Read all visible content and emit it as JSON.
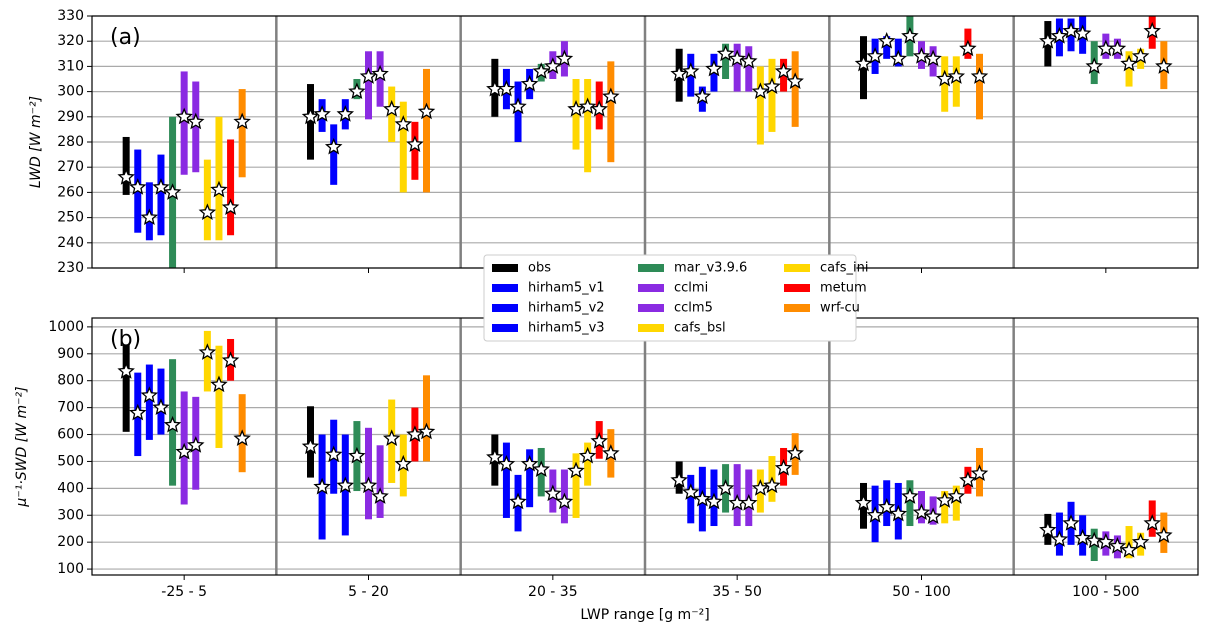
{
  "chart_data": [
    {
      "type": "range",
      "panel_label": "(a)",
      "y_label": "LWD [W m⁻²]",
      "categories": [
        "-25 - 5",
        "5 - 20",
        "20 - 35",
        "35 - 50",
        "50 - 100",
        "100 - 500"
      ],
      "ylim": [
        230,
        330
      ],
      "yticks": [
        230,
        240,
        250,
        260,
        270,
        280,
        290,
        300,
        310,
        320,
        330
      ],
      "grid": true,
      "series": [
        {
          "name": "obs",
          "color": "#000000",
          "low": [
            259,
            273,
            290,
            296,
            297,
            310
          ],
          "high": [
            282,
            303,
            313,
            317,
            322,
            328
          ],
          "values": [
            266,
            290,
            301,
            307,
            311,
            320
          ]
        },
        {
          "name": "hirham5_v1",
          "color": "#0000ff",
          "low": [
            244,
            284,
            293,
            298,
            307,
            314
          ],
          "high": [
            277,
            297,
            309,
            315,
            321,
            329
          ],
          "values": [
            262,
            291,
            301,
            308,
            314,
            322
          ]
        },
        {
          "name": "hirham5_v2",
          "color": "#0000ff",
          "low": [
            241,
            263,
            280,
            292,
            313,
            316
          ],
          "high": [
            264,
            287,
            304,
            302,
            322,
            329
          ],
          "values": [
            250,
            278,
            294,
            298,
            320,
            324
          ]
        },
        {
          "name": "hirham5_v3",
          "color": "#0000ff",
          "low": [
            243,
            285,
            297,
            300,
            310,
            315
          ],
          "high": [
            275,
            297,
            309,
            315,
            321,
            330
          ],
          "values": [
            262,
            291,
            303,
            309,
            313,
            323
          ]
        },
        {
          "name": "mar_v3.9.6",
          "color": "#2e8b57",
          "low": [
            230,
            297,
            304,
            305,
            314,
            303
          ],
          "high": [
            290,
            305,
            311,
            319,
            330,
            320
          ],
          "values": [
            260,
            300,
            308,
            315,
            322,
            310
          ]
        },
        {
          "name": "cclmi",
          "color": "#8a2be2",
          "low": [
            267,
            289,
            305,
            300,
            309,
            313
          ],
          "high": [
            308,
            316,
            316,
            319,
            320,
            323
          ],
          "values": [
            290,
            306,
            310,
            313,
            314,
            317
          ]
        },
        {
          "name": "cclm5",
          "color": "#8a2be2",
          "low": [
            268,
            294,
            306,
            300,
            306,
            313
          ],
          "high": [
            304,
            316,
            320,
            318,
            318,
            321
          ],
          "values": [
            288,
            307,
            313,
            312,
            313,
            317
          ]
        },
        {
          "name": "cafs_bsl",
          "color": "#ffd700",
          "low": [
            241,
            280,
            277,
            279,
            292,
            302
          ],
          "high": [
            273,
            302,
            305,
            310,
            314,
            316
          ],
          "values": [
            252,
            293,
            293,
            300,
            305,
            311
          ]
        },
        {
          "name": "cafs_ini",
          "color": "#ffd700",
          "low": [
            241,
            260,
            268,
            284,
            294,
            309
          ],
          "high": [
            290,
            296,
            305,
            313,
            314,
            317
          ],
          "values": [
            261,
            287,
            294,
            302,
            306,
            314
          ]
        },
        {
          "name": "metum",
          "color": "#ff0000",
          "low": [
            243,
            265,
            285,
            300,
            313,
            317
          ],
          "high": [
            281,
            288,
            304,
            313,
            325,
            330
          ],
          "values": [
            254,
            279,
            293,
            308,
            317,
            324
          ]
        },
        {
          "name": "wrf-cu",
          "color": "#ff8c00",
          "low": [
            266,
            260,
            272,
            286,
            289,
            301
          ],
          "high": [
            301,
            309,
            312,
            316,
            315,
            320
          ],
          "values": [
            288,
            292,
            298,
            304,
            306,
            310
          ]
        }
      ]
    },
    {
      "type": "range",
      "panel_label": "(b)",
      "y_label": "μ⁻¹·SWD [W m⁻²]",
      "x_label": "LWP range [g m⁻²]",
      "ylim": [
        78,
        1033
      ],
      "yticks": [
        100,
        200,
        300,
        400,
        500,
        600,
        700,
        800,
        900,
        1000
      ],
      "grid": true,
      "series": [
        {
          "color": "#000000",
          "low": [
            610,
            440,
            410,
            380,
            250,
            190
          ],
          "high": [
            935,
            705,
            600,
            500,
            420,
            305
          ],
          "values": [
            835,
            555,
            515,
            430,
            345,
            245
          ]
        },
        {
          "color": "#0000ff",
          "low": [
            520,
            210,
            290,
            270,
            200,
            150
          ],
          "high": [
            830,
            600,
            570,
            450,
            410,
            310
          ],
          "values": [
            680,
            405,
            490,
            385,
            300,
            210
          ]
        },
        {
          "color": "#0000ff",
          "low": [
            580,
            380,
            240,
            240,
            260,
            190
          ],
          "high": [
            860,
            655,
            450,
            480,
            430,
            350
          ],
          "values": [
            745,
            525,
            350,
            360,
            330,
            270
          ]
        },
        {
          "color": "#0000ff",
          "low": [
            600,
            225,
            330,
            260,
            210,
            150
          ],
          "high": [
            845,
            600,
            545,
            470,
            420,
            300
          ],
          "values": [
            700,
            410,
            490,
            350,
            305,
            215
          ]
        },
        {
          "color": "#2e8b57",
          "low": [
            410,
            390,
            370,
            310,
            260,
            130
          ],
          "high": [
            880,
            650,
            550,
            490,
            430,
            250
          ],
          "values": [
            635,
            520,
            470,
            400,
            370,
            205
          ]
        },
        {
          "color": "#8a2be2",
          "low": [
            340,
            285,
            310,
            260,
            270,
            150
          ],
          "high": [
            760,
            625,
            470,
            490,
            390,
            240
          ],
          "values": [
            535,
            410,
            380,
            345,
            310,
            200
          ]
        },
        {
          "color": "#8a2be2",
          "low": [
            395,
            290,
            270,
            260,
            265,
            140
          ],
          "high": [
            740,
            560,
            470,
            470,
            370,
            225
          ],
          "values": [
            560,
            370,
            350,
            345,
            295,
            185
          ]
        },
        {
          "color": "#ffd700",
          "low": [
            760,
            420,
            290,
            310,
            270,
            140
          ],
          "high": [
            985,
            730,
            530,
            470,
            390,
            260
          ],
          "values": [
            905,
            585,
            465,
            400,
            355,
            170
          ]
        },
        {
          "color": "#ffd700",
          "low": [
            550,
            370,
            410,
            350,
            280,
            150
          ],
          "high": [
            930,
            600,
            570,
            520,
            410,
            235
          ],
          "values": [
            785,
            490,
            520,
            410,
            370,
            200
          ]
        },
        {
          "color": "#ff0000",
          "low": [
            800,
            500,
            510,
            410,
            380,
            220
          ],
          "high": [
            955,
            700,
            650,
            550,
            480,
            355
          ],
          "values": [
            875,
            600,
            575,
            475,
            430,
            270
          ]
        },
        {
          "color": "#ff8c00",
          "low": [
            460,
            500,
            440,
            450,
            370,
            160
          ],
          "high": [
            750,
            820,
            620,
            605,
            550,
            310
          ],
          "values": [
            585,
            610,
            530,
            530,
            455,
            225
          ]
        }
      ]
    }
  ]
}
